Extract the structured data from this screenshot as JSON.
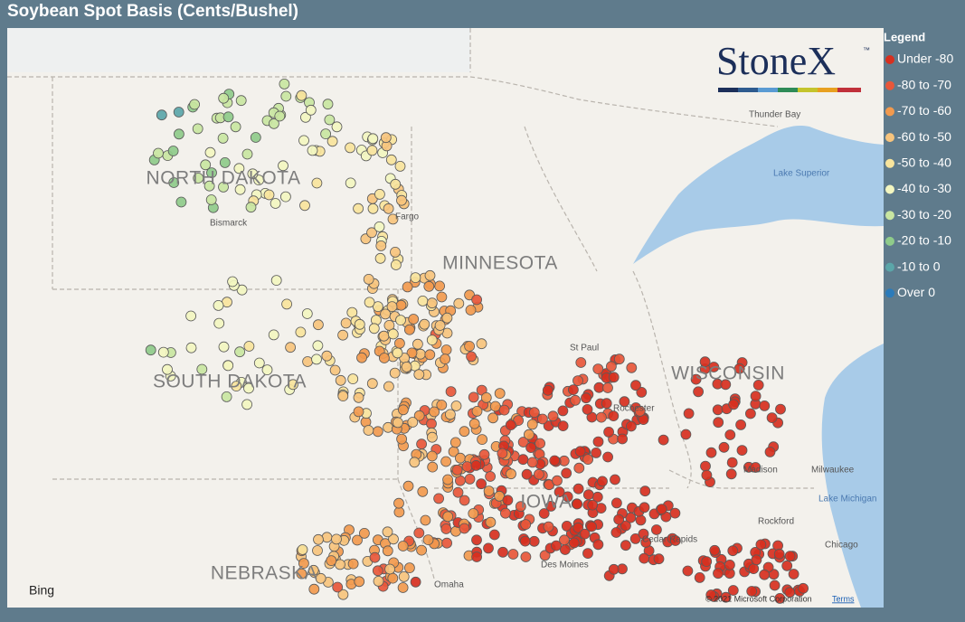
{
  "title": "Soybean Spot Basis (Cents/Bushel)",
  "legend": {
    "title": "Legend",
    "items": [
      {
        "label": "Under -80",
        "color": "#d7301f"
      },
      {
        "label": "-80 to -70",
        "color": "#e8573a"
      },
      {
        "label": "-70 to -60",
        "color": "#f29a4e"
      },
      {
        "label": "-60 to -50",
        "color": "#f7c47d"
      },
      {
        "label": "-50 to -40",
        "color": "#f8e49c"
      },
      {
        "label": "-40 to -30",
        "color": "#f3f6c0"
      },
      {
        "label": "-30 to -20",
        "color": "#c9e6a1"
      },
      {
        "label": "-20 to -10",
        "color": "#8fcb8a"
      },
      {
        "label": "-10 to 0",
        "color": "#5ba6a9"
      },
      {
        "label": "Over 0",
        "color": "#2b7bba"
      }
    ]
  },
  "logo": {
    "name": "StoneX",
    "mark": "™"
  },
  "map": {
    "states": [
      "NORTH DAKOTA",
      "SOUTH DAKOTA",
      "MINNESOTA",
      "WISCONSIN",
      "IOWA",
      "NEBRASKA"
    ],
    "cities": [
      "Bismarck",
      "Fargo",
      "St Paul",
      "Rochester",
      "Madison",
      "Milwaukee",
      "Rockford",
      "Cedar Rapids",
      "Des Moines",
      "Omaha",
      "Chicago",
      "Thunder Bay"
    ],
    "water": [
      "Lake Superior",
      "Lake Michigan"
    ],
    "attribution": {
      "provider": "Bing",
      "copyright": "© 2021 Microsoft Corporation",
      "terms": "Terms"
    }
  }
}
